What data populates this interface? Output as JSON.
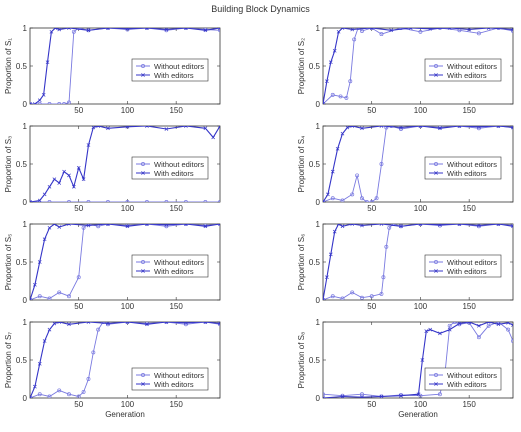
{
  "figure": {
    "title": "Building Block Dynamics"
  },
  "chart_data": [
    {
      "type": "line",
      "ylabel": "Proportion of S₁",
      "xlabel": "",
      "xlim": [
        0,
        195
      ],
      "ylim": [
        0,
        1
      ],
      "xticks": [
        "50",
        "100",
        "150"
      ],
      "yticks": [
        "0",
        "0.5",
        "1"
      ],
      "legend": {
        "position": "center-right",
        "entries": [
          "Without editors",
          "With editors"
        ]
      },
      "series": [
        {
          "name": "Without editors",
          "color": "#7a7ae0",
          "x": [
            0,
            10,
            20,
            30,
            35,
            40,
            45,
            50,
            60,
            80,
            100,
            120,
            140,
            160,
            180,
            195
          ],
          "y": [
            0,
            0,
            0,
            0,
            0,
            0.02,
            0.95,
            1,
            0.97,
            1,
            0.98,
            1,
            0.97,
            1,
            0.98,
            0.97
          ]
        },
        {
          "name": "With editors",
          "color": "#3535c8",
          "x": [
            0,
            5,
            10,
            14,
            18,
            22,
            26,
            30,
            40,
            60,
            80,
            100,
            120,
            140,
            160,
            180,
            195
          ],
          "y": [
            0,
            0,
            0.05,
            0.12,
            0.55,
            0.95,
            1,
            0.98,
            1,
            0.97,
            1,
            0.99,
            1,
            0.98,
            1,
            0.97,
            1
          ]
        }
      ]
    },
    {
      "type": "line",
      "ylabel": "Proportion of S₂",
      "xlabel": "",
      "xlim": [
        0,
        195
      ],
      "ylim": [
        0,
        1
      ],
      "xticks": [
        "50",
        "100",
        "150"
      ],
      "yticks": [
        "0",
        "0.5",
        "1"
      ],
      "legend": {
        "position": "center-right",
        "entries": [
          "Without editors",
          "With editors"
        ]
      },
      "series": [
        {
          "name": "Without editors",
          "color": "#7a7ae0",
          "x": [
            0,
            10,
            18,
            24,
            28,
            32,
            36,
            40,
            50,
            60,
            80,
            100,
            120,
            140,
            160,
            180,
            195
          ],
          "y": [
            0,
            0.12,
            0.1,
            0.08,
            0.3,
            0.85,
            1,
            0.96,
            1,
            0.92,
            1,
            0.95,
            1,
            0.97,
            0.93,
            1,
            0.96
          ]
        },
        {
          "name": "With editors",
          "color": "#3535c8",
          "x": [
            0,
            4,
            8,
            12,
            16,
            20,
            30,
            50,
            70,
            90,
            110,
            130,
            150,
            170,
            195
          ],
          "y": [
            0,
            0.3,
            0.55,
            0.7,
            0.95,
            1,
            0.98,
            1,
            0.97,
            1,
            0.99,
            1,
            0.98,
            1,
            0.98
          ]
        }
      ]
    },
    {
      "type": "line",
      "ylabel": "Proportion of S₃",
      "xlabel": "",
      "xlim": [
        0,
        195
      ],
      "ylim": [
        0,
        1
      ],
      "xticks": [
        "50",
        "100",
        "150"
      ],
      "yticks": [
        "0",
        "0.5",
        "1"
      ],
      "legend": {
        "position": "center-right",
        "entries": [
          "Without editors",
          "With editors"
        ]
      },
      "series": [
        {
          "name": "Without editors",
          "color": "#7a7ae0",
          "x": [
            0,
            20,
            40,
            60,
            80,
            100,
            120,
            140,
            160,
            180,
            195
          ],
          "y": [
            0,
            0,
            0,
            0,
            0,
            0,
            0,
            0,
            0,
            0,
            0
          ]
        },
        {
          "name": "With editors",
          "color": "#3535c8",
          "x": [
            0,
            10,
            15,
            20,
            25,
            30,
            35,
            40,
            45,
            50,
            55,
            60,
            65,
            70,
            80,
            100,
            120,
            140,
            160,
            180,
            188,
            195
          ],
          "y": [
            0,
            0.02,
            0.1,
            0.2,
            0.3,
            0.25,
            0.4,
            0.35,
            0.2,
            0.45,
            0.3,
            0.75,
            0.98,
            1,
            0.97,
            0.99,
            1,
            0.96,
            1,
            0.97,
            0.85,
            1
          ]
        }
      ]
    },
    {
      "type": "line",
      "ylabel": "Proportion of S₄",
      "xlabel": "",
      "xlim": [
        0,
        195
      ],
      "ylim": [
        0,
        1
      ],
      "xticks": [
        "50",
        "100",
        "150"
      ],
      "yticks": [
        "0",
        "0.5",
        "1"
      ],
      "legend": {
        "position": "center-right",
        "entries": [
          "Without editors",
          "With editors"
        ]
      },
      "series": [
        {
          "name": "Without editors",
          "color": "#7a7ae0",
          "x": [
            0,
            10,
            20,
            30,
            35,
            40,
            45,
            50,
            55,
            60,
            65,
            70,
            80,
            100,
            120,
            140,
            160,
            180,
            195
          ],
          "y": [
            0,
            0.05,
            0.02,
            0.1,
            0.35,
            0.05,
            0,
            0,
            0.05,
            0.5,
            0.98,
            1,
            0.96,
            1,
            0.98,
            1,
            0.97,
            1,
            0.98
          ]
        },
        {
          "name": "With editors",
          "color": "#3535c8",
          "x": [
            0,
            5,
            10,
            15,
            20,
            25,
            30,
            40,
            60,
            80,
            100,
            120,
            140,
            160,
            180,
            195
          ],
          "y": [
            0,
            0.1,
            0.4,
            0.7,
            0.9,
            0.98,
            1,
            0.97,
            1,
            0.98,
            1,
            0.97,
            1,
            0.99,
            1,
            0.98
          ]
        }
      ]
    },
    {
      "type": "line",
      "ylabel": "Proportion of S₅",
      "xlabel": "",
      "xlim": [
        0,
        195
      ],
      "ylim": [
        0,
        1
      ],
      "xticks": [
        "50",
        "100",
        "150"
      ],
      "yticks": [
        "0",
        "0.5",
        "1"
      ],
      "legend": {
        "position": "center-right",
        "entries": [
          "Without editors",
          "With editors"
        ]
      },
      "series": [
        {
          "name": "Without editors",
          "color": "#7a7ae0",
          "x": [
            0,
            10,
            20,
            30,
            40,
            50,
            55,
            60,
            70,
            80,
            100,
            120,
            140,
            160,
            180,
            195
          ],
          "y": [
            0,
            0.05,
            0.02,
            0.1,
            0.05,
            0.3,
            0.95,
            1,
            0.97,
            1,
            0.98,
            1,
            0.97,
            1,
            0.98,
            1
          ]
        },
        {
          "name": "With editors",
          "color": "#3535c8",
          "x": [
            0,
            5,
            10,
            15,
            20,
            25,
            30,
            40,
            60,
            80,
            100,
            120,
            140,
            160,
            180,
            195
          ],
          "y": [
            0,
            0.2,
            0.5,
            0.8,
            0.95,
            1,
            0.96,
            1,
            0.98,
            1,
            0.97,
            1,
            0.99,
            1,
            0.97,
            1
          ]
        }
      ]
    },
    {
      "type": "line",
      "ylabel": "Proportion of S₆",
      "xlabel": "",
      "xlim": [
        0,
        195
      ],
      "ylim": [
        0,
        1
      ],
      "xticks": [
        "50",
        "100",
        "150"
      ],
      "yticks": [
        "0",
        "0.5",
        "1"
      ],
      "legend": {
        "position": "center-right",
        "entries": [
          "Without editors",
          "With editors"
        ]
      },
      "series": [
        {
          "name": "Without editors",
          "color": "#7a7ae0",
          "x": [
            0,
            10,
            20,
            30,
            40,
            50,
            60,
            62,
            65,
            68,
            72,
            80,
            100,
            120,
            140,
            160,
            180,
            195
          ],
          "y": [
            0,
            0.05,
            0.02,
            0.1,
            0.03,
            0.05,
            0.08,
            0.3,
            0.7,
            0.95,
            1,
            0.97,
            1,
            0.98,
            1,
            0.97,
            1,
            0.98
          ]
        },
        {
          "name": "With editors",
          "color": "#3535c8",
          "x": [
            0,
            4,
            8,
            12,
            16,
            20,
            30,
            40,
            60,
            80,
            100,
            120,
            140,
            160,
            180,
            195
          ],
          "y": [
            0,
            0.3,
            0.6,
            0.9,
            1,
            0.97,
            1,
            0.98,
            1,
            0.97,
            1,
            0.99,
            1,
            0.98,
            1,
            0.97
          ]
        }
      ]
    },
    {
      "type": "line",
      "ylabel": "Proportion of S₇",
      "xlabel": "Generation",
      "xlim": [
        0,
        195
      ],
      "ylim": [
        0,
        1
      ],
      "xticks": [
        "50",
        "100",
        "150"
      ],
      "yticks": [
        "0",
        "0.5",
        "1"
      ],
      "legend": {
        "position": "bottom-right",
        "entries": [
          "Without editors",
          "With editors"
        ]
      },
      "series": [
        {
          "name": "Without editors",
          "color": "#7a7ae0",
          "x": [
            0,
            10,
            20,
            30,
            40,
            50,
            55,
            60,
            65,
            70,
            75,
            80,
            100,
            120,
            140,
            160,
            180,
            195
          ],
          "y": [
            0,
            0.05,
            0.02,
            0.1,
            0.05,
            0.02,
            0.08,
            0.25,
            0.6,
            0.9,
            1,
            0.97,
            1,
            0.98,
            1,
            0.97,
            1,
            0.97
          ]
        },
        {
          "name": "With editors",
          "color": "#3535c8",
          "x": [
            0,
            5,
            10,
            15,
            20,
            25,
            30,
            40,
            60,
            80,
            100,
            120,
            140,
            160,
            180,
            195
          ],
          "y": [
            0,
            0.15,
            0.45,
            0.75,
            0.9,
            0.98,
            1,
            0.97,
            1,
            0.98,
            1,
            0.97,
            1,
            0.99,
            1,
            0.98
          ]
        }
      ]
    },
    {
      "type": "line",
      "ylabel": "Proportion of S₈",
      "xlabel": "Generation",
      "xlim": [
        0,
        195
      ],
      "ylim": [
        0,
        1
      ],
      "xticks": [
        "50",
        "100",
        "150"
      ],
      "yticks": [
        "0",
        "0.5",
        "1"
      ],
      "legend": {
        "position": "bottom-right",
        "entries": [
          "Without editors",
          "With editors"
        ]
      },
      "series": [
        {
          "name": "Without editors",
          "color": "#7a7ae0",
          "x": [
            0,
            20,
            40,
            60,
            80,
            100,
            120,
            125,
            130,
            135,
            140,
            150,
            160,
            170,
            180,
            190,
            195
          ],
          "y": [
            0.05,
            0.03,
            0.05,
            0.02,
            0.04,
            0.03,
            0.05,
            0.3,
            0.95,
            1,
            0.97,
            0.99,
            0.8,
            0.95,
            1,
            0.9,
            0.75
          ]
        },
        {
          "name": "With editors",
          "color": "#3535c8",
          "x": [
            0,
            20,
            40,
            60,
            80,
            98,
            102,
            106,
            110,
            120,
            130,
            140,
            150,
            160,
            170,
            180,
            190,
            195
          ],
          "y": [
            0,
            0.02,
            0.01,
            0.02,
            0.03,
            0.05,
            0.5,
            0.88,
            0.9,
            0.85,
            0.9,
            0.98,
            1,
            0.95,
            1,
            0.97,
            0.99,
            0.96
          ]
        }
      ]
    }
  ]
}
